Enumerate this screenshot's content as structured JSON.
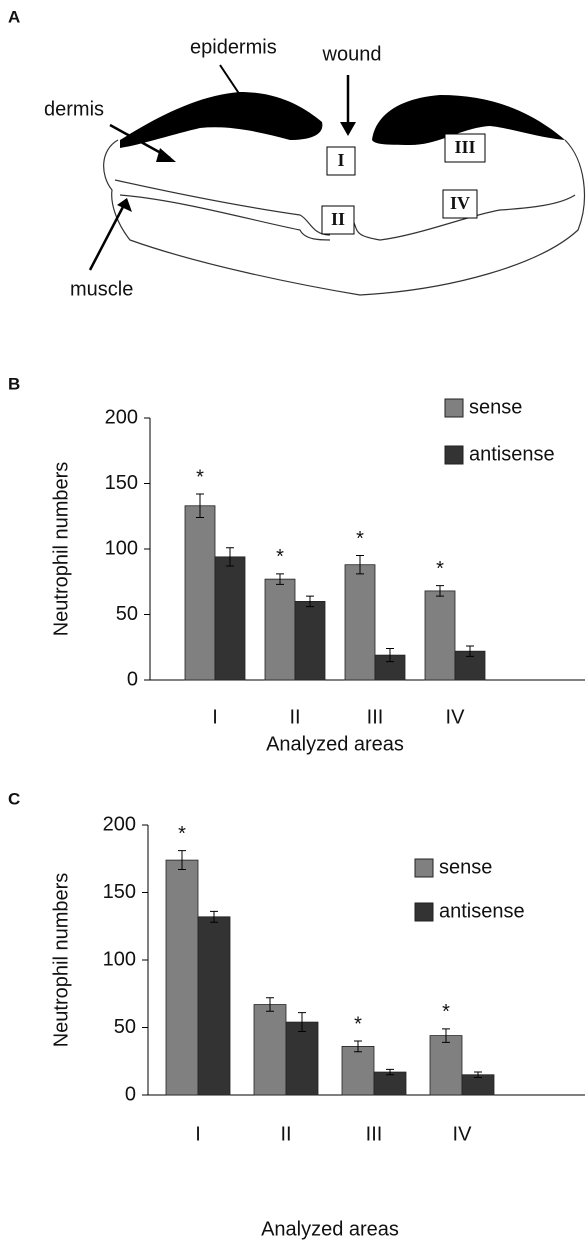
{
  "panel_a": {
    "letter": "A",
    "labels": {
      "epidermis": "epidermis",
      "wound": "wound",
      "dermis": "dermis",
      "muscle": "muscle"
    },
    "areas": [
      "I",
      "II",
      "III",
      "IV"
    ]
  },
  "chart_data": [
    {
      "type": "bar",
      "panel": "B",
      "y_label": "Neutrophil numbers",
      "x_label": "Analyzed areas",
      "categories": [
        "I",
        "II",
        "III",
        "IV"
      ],
      "series": [
        {
          "name": "sense",
          "color": "#808080",
          "values": [
            133,
            77,
            88,
            68
          ],
          "errors": [
            9,
            4,
            7,
            4
          ],
          "significance": [
            "*",
            "*",
            "*",
            "*"
          ]
        },
        {
          "name": "antisense",
          "color": "#333333",
          "values": [
            94,
            60,
            19,
            22
          ],
          "errors": [
            7,
            4,
            5,
            4
          ]
        }
      ],
      "ylim": [
        0,
        200
      ],
      "yticks": [
        0,
        50,
        100,
        150,
        200
      ],
      "grid": false,
      "legend": "upper-right"
    },
    {
      "type": "bar",
      "panel": "C",
      "y_label": "Neutrophil numbers",
      "x_label": "Analyzed areas",
      "categories": [
        "I",
        "II",
        "III",
        "IV"
      ],
      "series": [
        {
          "name": "sense",
          "color": "#808080",
          "values": [
            174,
            67,
            36,
            44
          ],
          "errors": [
            7,
            5,
            4,
            5
          ],
          "significance": [
            "*",
            null,
            "*",
            "*"
          ]
        },
        {
          "name": "antisense",
          "color": "#333333",
          "values": [
            132,
            54,
            17,
            15
          ],
          "errors": [
            4,
            7,
            2,
            2
          ]
        }
      ],
      "ylim": [
        0,
        200
      ],
      "yticks": [
        0,
        50,
        100,
        150,
        200
      ],
      "grid": false,
      "legend": "upper-right"
    }
  ]
}
